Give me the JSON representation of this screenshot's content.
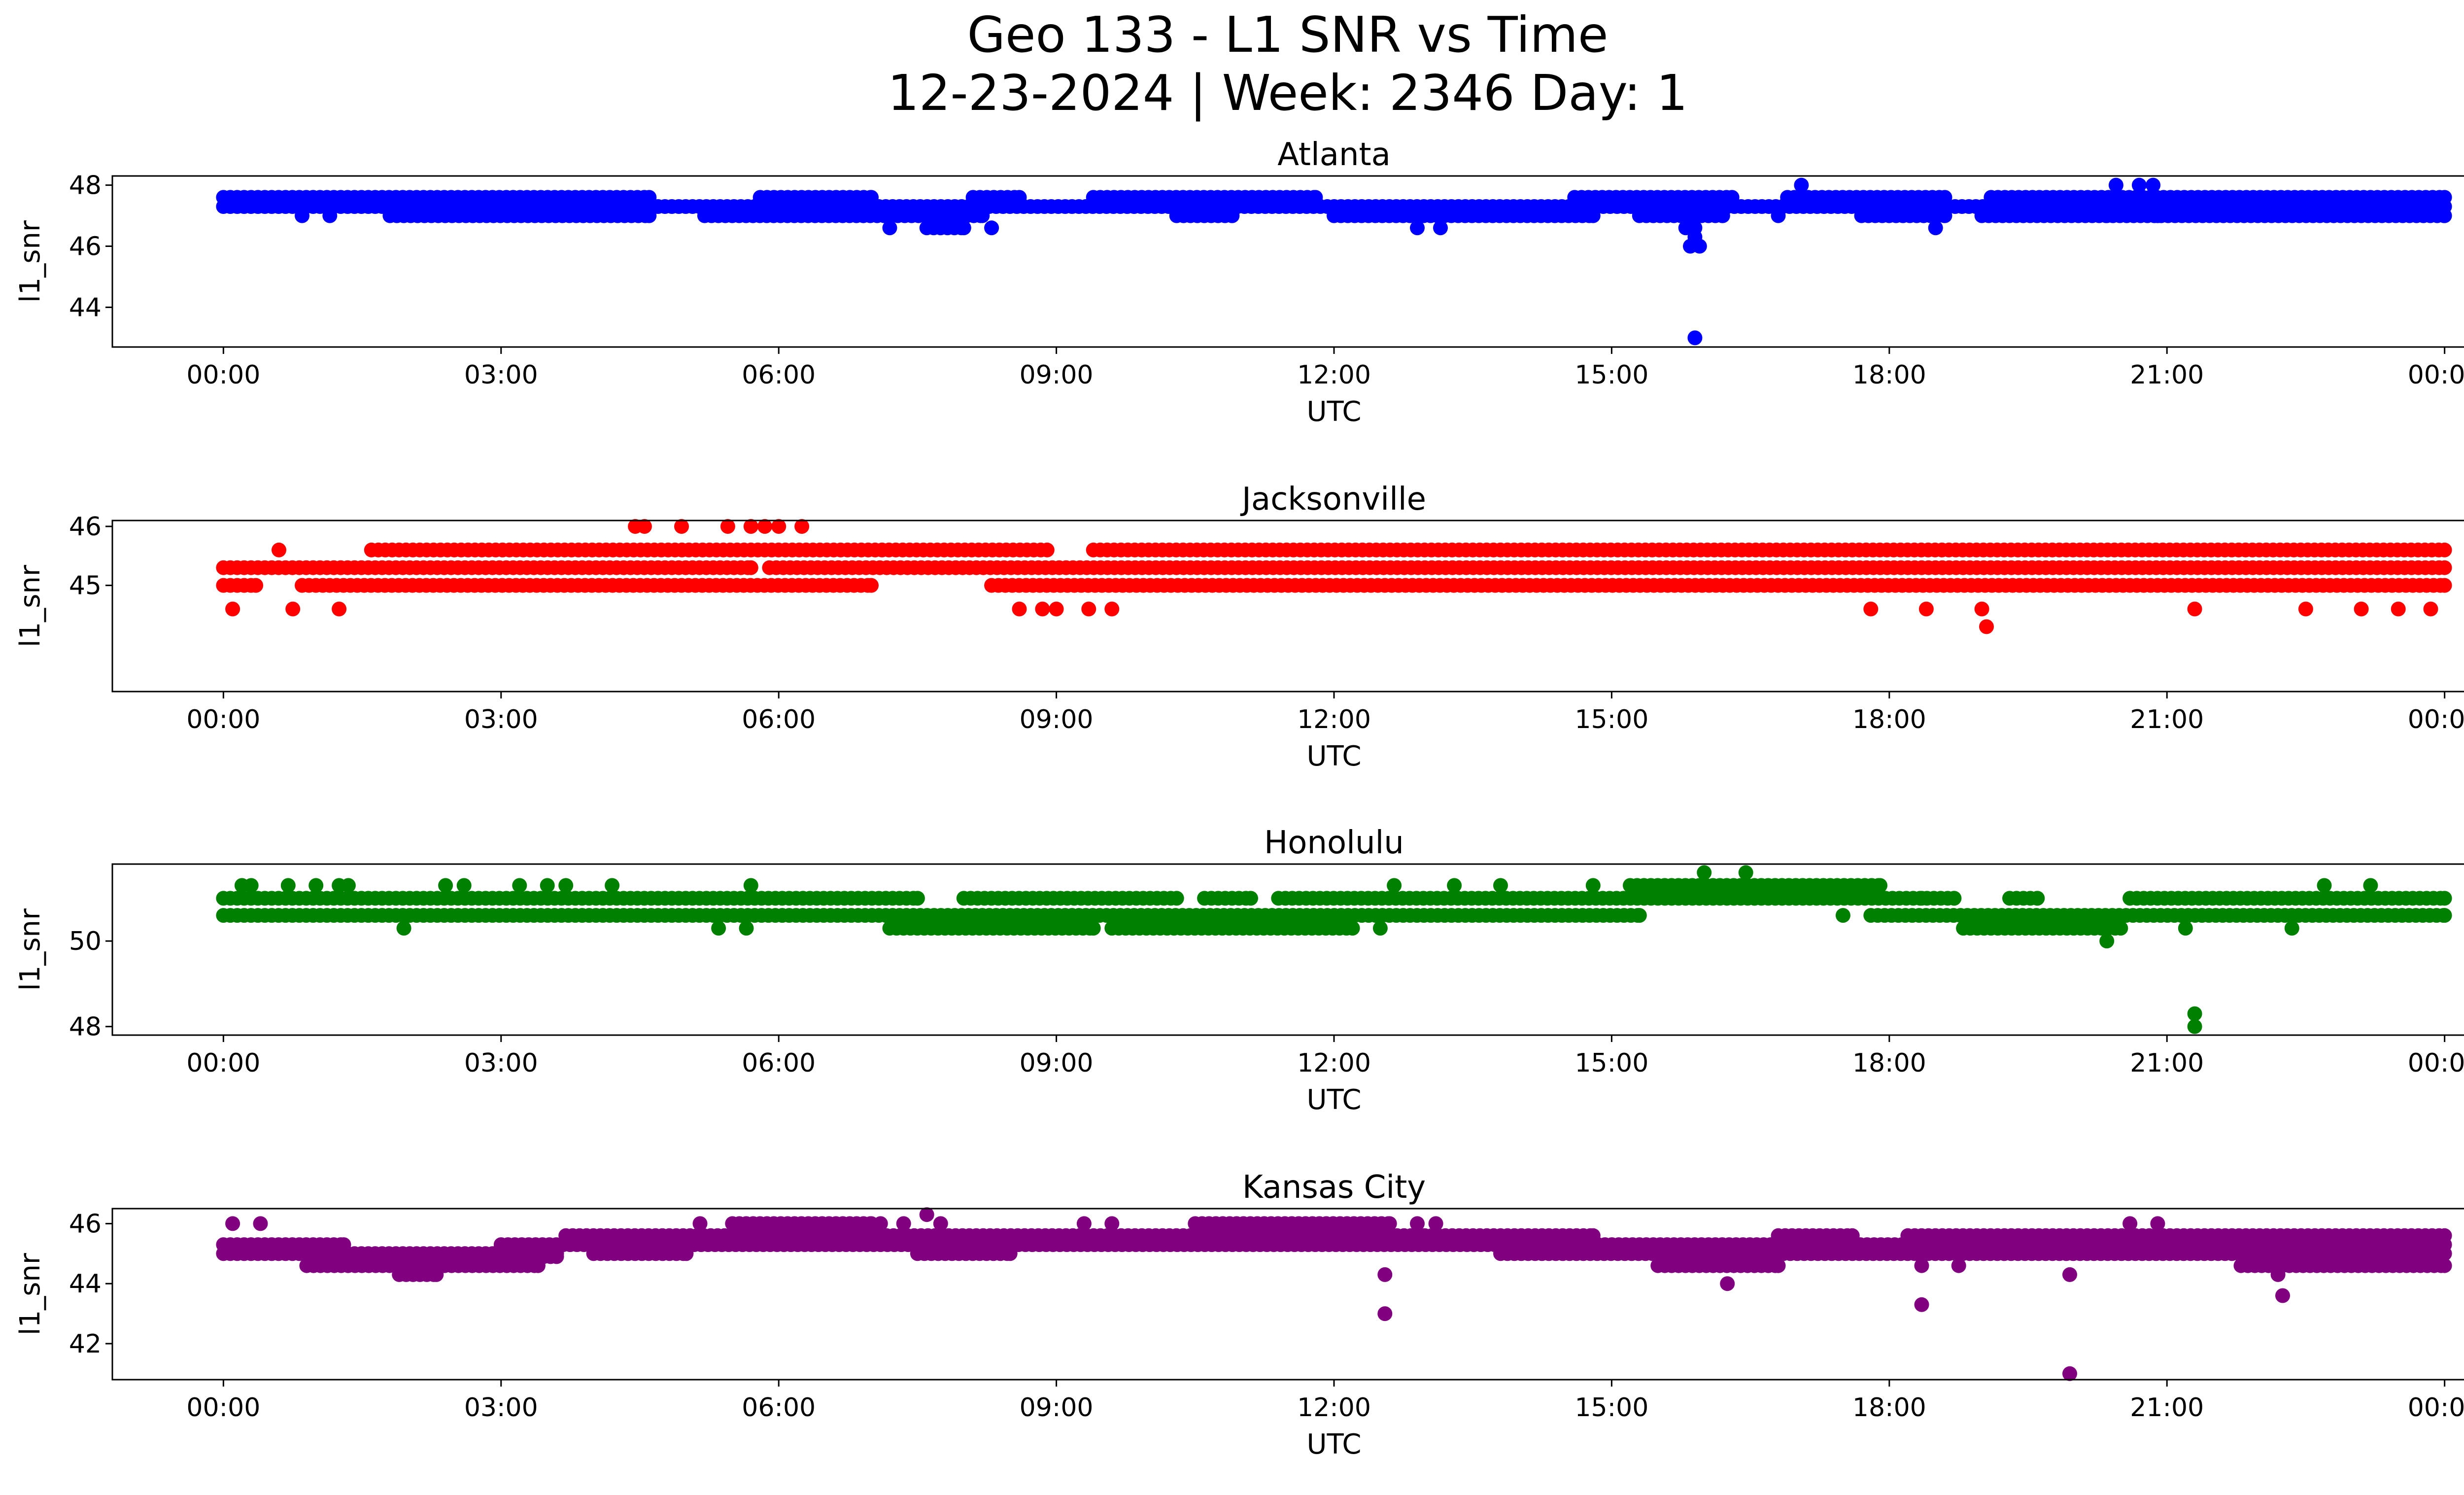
{
  "figure": {
    "title_line1": "Geo 133 - L1 SNR vs Time",
    "title_line2": "12-23-2024 | Week: 2346 Day: 1"
  },
  "chart_data": [
    {
      "type": "scatter",
      "title": "Atlanta",
      "xlabel": "UTC",
      "ylabel": "l1_snr",
      "color": "#0000ff",
      "xlim": [
        -1.2,
        25.2
      ],
      "ylim": [
        42.7,
        48.3
      ],
      "xticks": [
        0,
        3,
        6,
        9,
        12,
        15,
        18,
        21,
        24
      ],
      "xtick_labels": [
        "00:00",
        "03:00",
        "06:00",
        "09:00",
        "12:00",
        "15:00",
        "18:00",
        "21:00",
        "00:00"
      ],
      "yticks": [
        44,
        46,
        48
      ],
      "ytick_labels": [
        "44",
        "46",
        "48"
      ],
      "bands": [
        {
          "y": 47.6,
          "segments": [
            [
              0.0,
              4.6
            ],
            [
              5.8,
              7.0
            ],
            [
              8.1,
              8.6
            ],
            [
              9.4,
              11.8
            ],
            [
              14.6,
              16.3
            ],
            [
              16.9,
              18.6
            ],
            [
              19.1,
              24.0
            ]
          ]
        },
        {
          "y": 47.3,
          "segments": [
            [
              0.0,
              24.0
            ]
          ]
        },
        {
          "y": 47.0,
          "segments": [
            [
              1.8,
              4.6
            ],
            [
              5.2,
              8.2
            ],
            [
              10.3,
              10.9
            ],
            [
              12.0,
              14.8
            ],
            [
              15.3,
              16.2
            ],
            [
              17.7,
              18.6
            ],
            [
              19.0,
              24.0
            ]
          ]
        },
        {
          "y": 46.6,
          "segments": [
            [
              7.6,
              8.0
            ],
            [
              15.8,
              15.9
            ]
          ]
        }
      ],
      "points": [
        {
          "x": 0.85,
          "y": 47.0
        },
        {
          "x": 1.15,
          "y": 47.0
        },
        {
          "x": 7.2,
          "y": 46.6
        },
        {
          "x": 8.3,
          "y": 46.6
        },
        {
          "x": 12.9,
          "y": 46.6
        },
        {
          "x": 13.15,
          "y": 46.6
        },
        {
          "x": 18.5,
          "y": 46.6
        },
        {
          "x": 15.9,
          "y": 46.3
        },
        {
          "x": 15.95,
          "y": 46.0
        },
        {
          "x": 15.85,
          "y": 46.0
        },
        {
          "x": 15.9,
          "y": 43.0
        },
        {
          "x": 17.05,
          "y": 48.0
        },
        {
          "x": 20.45,
          "y": 48.0
        },
        {
          "x": 20.7,
          "y": 48.0
        },
        {
          "x": 20.85,
          "y": 48.0
        },
        {
          "x": 16.8,
          "y": 47.0
        },
        {
          "x": 20.35,
          "y": 47.0
        },
        {
          "x": 20.9,
          "y": 47.0
        }
      ]
    },
    {
      "type": "scatter",
      "title": "Jacksonville",
      "xlabel": "UTC",
      "ylabel": "l1_snr",
      "color": "#ff0000",
      "xlim": [
        -1.2,
        25.2
      ],
      "ylim": [
        43.2,
        46.1
      ],
      "xticks": [
        0,
        3,
        6,
        9,
        12,
        15,
        18,
        21,
        24
      ],
      "xtick_labels": [
        "00:00",
        "03:00",
        "06:00",
        "09:00",
        "12:00",
        "15:00",
        "18:00",
        "21:00",
        "00:00"
      ],
      "yticks": [
        45,
        46
      ],
      "ytick_labels": [
        "45",
        "46"
      ],
      "bands": [
        {
          "y": 45.0,
          "segments": [
            [
              0.0,
              0.35
            ],
            [
              0.85,
              7.0
            ],
            [
              8.3,
              24.0
            ]
          ]
        },
        {
          "y": 45.3,
          "segments": [
            [
              0.0,
              5.7
            ],
            [
              5.9,
              24.0
            ]
          ]
        },
        {
          "y": 45.6,
          "segments": [
            [
              1.6,
              8.9
            ],
            [
              9.4,
              24.0
            ]
          ]
        }
      ],
      "points": [
        {
          "x": 0.1,
          "y": 44.6
        },
        {
          "x": 0.75,
          "y": 44.6
        },
        {
          "x": 1.25,
          "y": 44.6
        },
        {
          "x": 8.6,
          "y": 44.6
        },
        {
          "x": 8.85,
          "y": 44.6
        },
        {
          "x": 9.0,
          "y": 44.6
        },
        {
          "x": 9.35,
          "y": 44.6
        },
        {
          "x": 9.6,
          "y": 44.6
        },
        {
          "x": 17.8,
          "y": 44.6
        },
        {
          "x": 18.4,
          "y": 44.6
        },
        {
          "x": 19.0,
          "y": 44.6
        },
        {
          "x": 21.3,
          "y": 44.6
        },
        {
          "x": 22.5,
          "y": 44.6
        },
        {
          "x": 23.1,
          "y": 44.6
        },
        {
          "x": 23.5,
          "y": 44.6
        },
        {
          "x": 23.85,
          "y": 44.6
        },
        {
          "x": 19.05,
          "y": 44.3
        },
        {
          "x": 4.45,
          "y": 46.0
        },
        {
          "x": 4.55,
          "y": 46.0
        },
        {
          "x": 4.95,
          "y": 46.0
        },
        {
          "x": 5.45,
          "y": 46.0
        },
        {
          "x": 5.7,
          "y": 46.0
        },
        {
          "x": 5.85,
          "y": 46.0
        },
        {
          "x": 6.0,
          "y": 46.0
        },
        {
          "x": 6.25,
          "y": 46.0
        },
        {
          "x": 0.6,
          "y": 45.6
        }
      ]
    },
    {
      "type": "scatter",
      "title": "Honolulu",
      "xlabel": "UTC",
      "ylabel": "l1_snr",
      "color": "#008000",
      "xlim": [
        -1.2,
        25.2
      ],
      "ylim": [
        47.8,
        51.8
      ],
      "xticks": [
        0,
        3,
        6,
        9,
        12,
        15,
        18,
        21,
        24
      ],
      "xtick_labels": [
        "00:00",
        "03:00",
        "06:00",
        "09:00",
        "12:00",
        "15:00",
        "18:00",
        "21:00",
        "00:00"
      ],
      "yticks": [
        48,
        50
      ],
      "ytick_labels": [
        "48",
        "50"
      ],
      "bands": [
        {
          "y": 50.6,
          "segments": [
            [
              0.0,
              15.3
            ],
            [
              17.8,
              24.0
            ]
          ]
        },
        {
          "y": 51.0,
          "segments": [
            [
              0.0,
              7.5
            ],
            [
              8.0,
              10.3
            ],
            [
              10.6,
              11.1
            ],
            [
              11.4,
              18.7
            ],
            [
              19.3,
              19.6
            ],
            [
              20.6,
              24.0
            ]
          ]
        },
        {
          "y": 51.3,
          "segments": [
            [
              15.2,
              17.9
            ]
          ]
        },
        {
          "y": 50.3,
          "segments": [
            [
              7.2,
              9.4
            ],
            [
              9.6,
              12.2
            ],
            [
              18.8,
              20.5
            ]
          ]
        }
      ],
      "points": [
        {
          "x": 0.2,
          "y": 51.3
        },
        {
          "x": 0.3,
          "y": 51.3
        },
        {
          "x": 0.7,
          "y": 51.3
        },
        {
          "x": 1.0,
          "y": 51.3
        },
        {
          "x": 1.25,
          "y": 51.3
        },
        {
          "x": 1.35,
          "y": 51.3
        },
        {
          "x": 2.4,
          "y": 51.3
        },
        {
          "x": 2.6,
          "y": 51.3
        },
        {
          "x": 3.2,
          "y": 51.3
        },
        {
          "x": 3.5,
          "y": 51.3
        },
        {
          "x": 3.7,
          "y": 51.3
        },
        {
          "x": 4.2,
          "y": 51.3
        },
        {
          "x": 5.7,
          "y": 51.3
        },
        {
          "x": 12.65,
          "y": 51.3
        },
        {
          "x": 13.3,
          "y": 51.3
        },
        {
          "x": 13.8,
          "y": 51.3
        },
        {
          "x": 14.8,
          "y": 51.3
        },
        {
          "x": 22.7,
          "y": 51.3
        },
        {
          "x": 23.2,
          "y": 51.3
        },
        {
          "x": 16.0,
          "y": 51.6
        },
        {
          "x": 16.45,
          "y": 51.6
        },
        {
          "x": 1.95,
          "y": 50.3
        },
        {
          "x": 5.35,
          "y": 50.3
        },
        {
          "x": 5.65,
          "y": 50.3
        },
        {
          "x": 12.5,
          "y": 50.3
        },
        {
          "x": 21.2,
          "y": 50.3
        },
        {
          "x": 22.35,
          "y": 50.3
        },
        {
          "x": 20.35,
          "y": 50.0
        },
        {
          "x": 21.3,
          "y": 48.3
        },
        {
          "x": 21.3,
          "y": 48.0
        },
        {
          "x": 17.5,
          "y": 50.6
        },
        {
          "x": 18.35,
          "y": 51.0
        },
        {
          "x": 18.7,
          "y": 51.0
        }
      ]
    },
    {
      "type": "scatter",
      "title": "Kansas City",
      "xlabel": "UTC",
      "ylabel": "l1_snr",
      "color": "#800080",
      "xlim": [
        -1.2,
        25.2
      ],
      "ylim": [
        40.8,
        46.5
      ],
      "xticks": [
        0,
        3,
        6,
        9,
        12,
        15,
        18,
        21,
        24
      ],
      "xtick_labels": [
        "00:00",
        "03:00",
        "06:00",
        "09:00",
        "12:00",
        "15:00",
        "18:00",
        "21:00",
        "00:00"
      ],
      "yticks": [
        42,
        44,
        46
      ],
      "ytick_labels": [
        "42",
        "44",
        "46"
      ],
      "bands": [
        {
          "y": 45.3,
          "segments": [
            [
              0.0,
              1.3
            ],
            [
              3.0,
              24.0
            ]
          ]
        },
        {
          "y": 45.0,
          "segments": [
            [
              0.0,
              3.6
            ],
            [
              4.0,
              5.0
            ],
            [
              7.5,
              8.5
            ],
            [
              13.8,
              24.0
            ]
          ]
        },
        {
          "y": 44.9,
          "segments": [
            [
              1.0,
              3.6
            ]
          ]
        },
        {
          "y": 44.6,
          "segments": [
            [
              0.9,
              3.4
            ],
            [
              15.5,
              16.8
            ],
            [
              21.8,
              24.0
            ]
          ]
        },
        {
          "y": 45.6,
          "segments": [
            [
              3.7,
              5.5
            ],
            [
              5.6,
              14.8
            ],
            [
              16.8,
              17.6
            ],
            [
              18.2,
              24.0
            ]
          ]
        },
        {
          "y": 46.0,
          "segments": [
            [
              5.5,
              7.0
            ],
            [
              10.5,
              12.6
            ]
          ]
        },
        {
          "y": 44.3,
          "segments": [
            [
              1.9,
              2.3
            ]
          ]
        }
      ],
      "points": [
        {
          "x": 0.1,
          "y": 46.0
        },
        {
          "x": 0.4,
          "y": 46.0
        },
        {
          "x": 5.15,
          "y": 46.0
        },
        {
          "x": 7.1,
          "y": 46.0
        },
        {
          "x": 7.35,
          "y": 46.0
        },
        {
          "x": 7.6,
          "y": 46.3
        },
        {
          "x": 7.75,
          "y": 46.0
        },
        {
          "x": 9.3,
          "y": 46.0
        },
        {
          "x": 9.6,
          "y": 46.0
        },
        {
          "x": 12.9,
          "y": 46.0
        },
        {
          "x": 13.1,
          "y": 46.0
        },
        {
          "x": 20.6,
          "y": 46.0
        },
        {
          "x": 20.9,
          "y": 46.0
        },
        {
          "x": 12.55,
          "y": 44.3
        },
        {
          "x": 12.55,
          "y": 43.0
        },
        {
          "x": 16.25,
          "y": 44.0
        },
        {
          "x": 18.35,
          "y": 43.3
        },
        {
          "x": 18.35,
          "y": 44.6
        },
        {
          "x": 18.75,
          "y": 44.6
        },
        {
          "x": 19.95,
          "y": 44.3
        },
        {
          "x": 19.95,
          "y": 41.0
        },
        {
          "x": 22.25,
          "y": 43.6
        },
        {
          "x": 22.2,
          "y": 44.3
        }
      ]
    }
  ]
}
